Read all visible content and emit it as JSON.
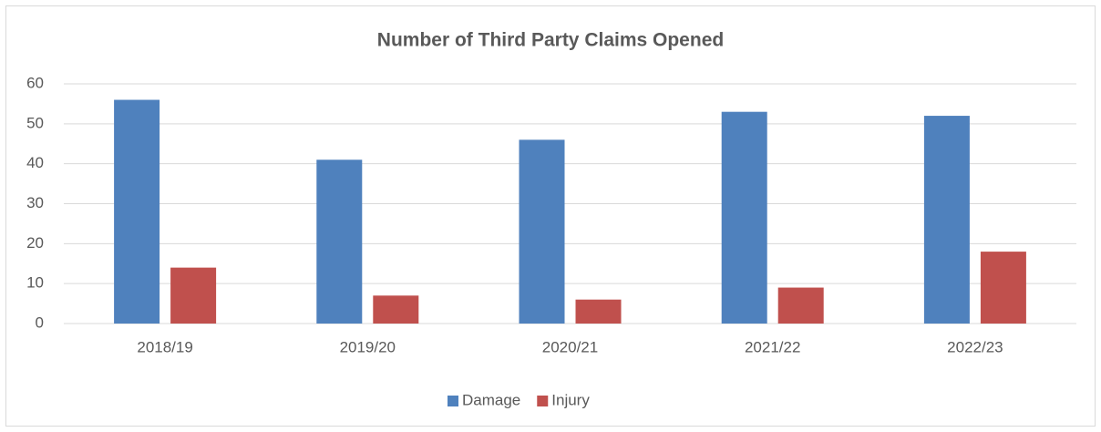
{
  "chart_data": {
    "type": "bar",
    "title": "Number of Third Party Claims Opened",
    "categories": [
      "2018/19",
      "2019/20",
      "2020/21",
      "2021/22",
      "2022/23"
    ],
    "series": [
      {
        "name": "Damage",
        "color": "#4f81bd",
        "values": [
          56,
          41,
          46,
          53,
          52
        ]
      },
      {
        "name": "Injury",
        "color": "#c0504d",
        "values": [
          14,
          7,
          6,
          9,
          18
        ]
      }
    ],
    "ylim": [
      0,
      60
    ],
    "yticks": [
      0,
      10,
      20,
      30,
      40,
      50,
      60
    ],
    "grid": true,
    "legend": "bottom"
  }
}
